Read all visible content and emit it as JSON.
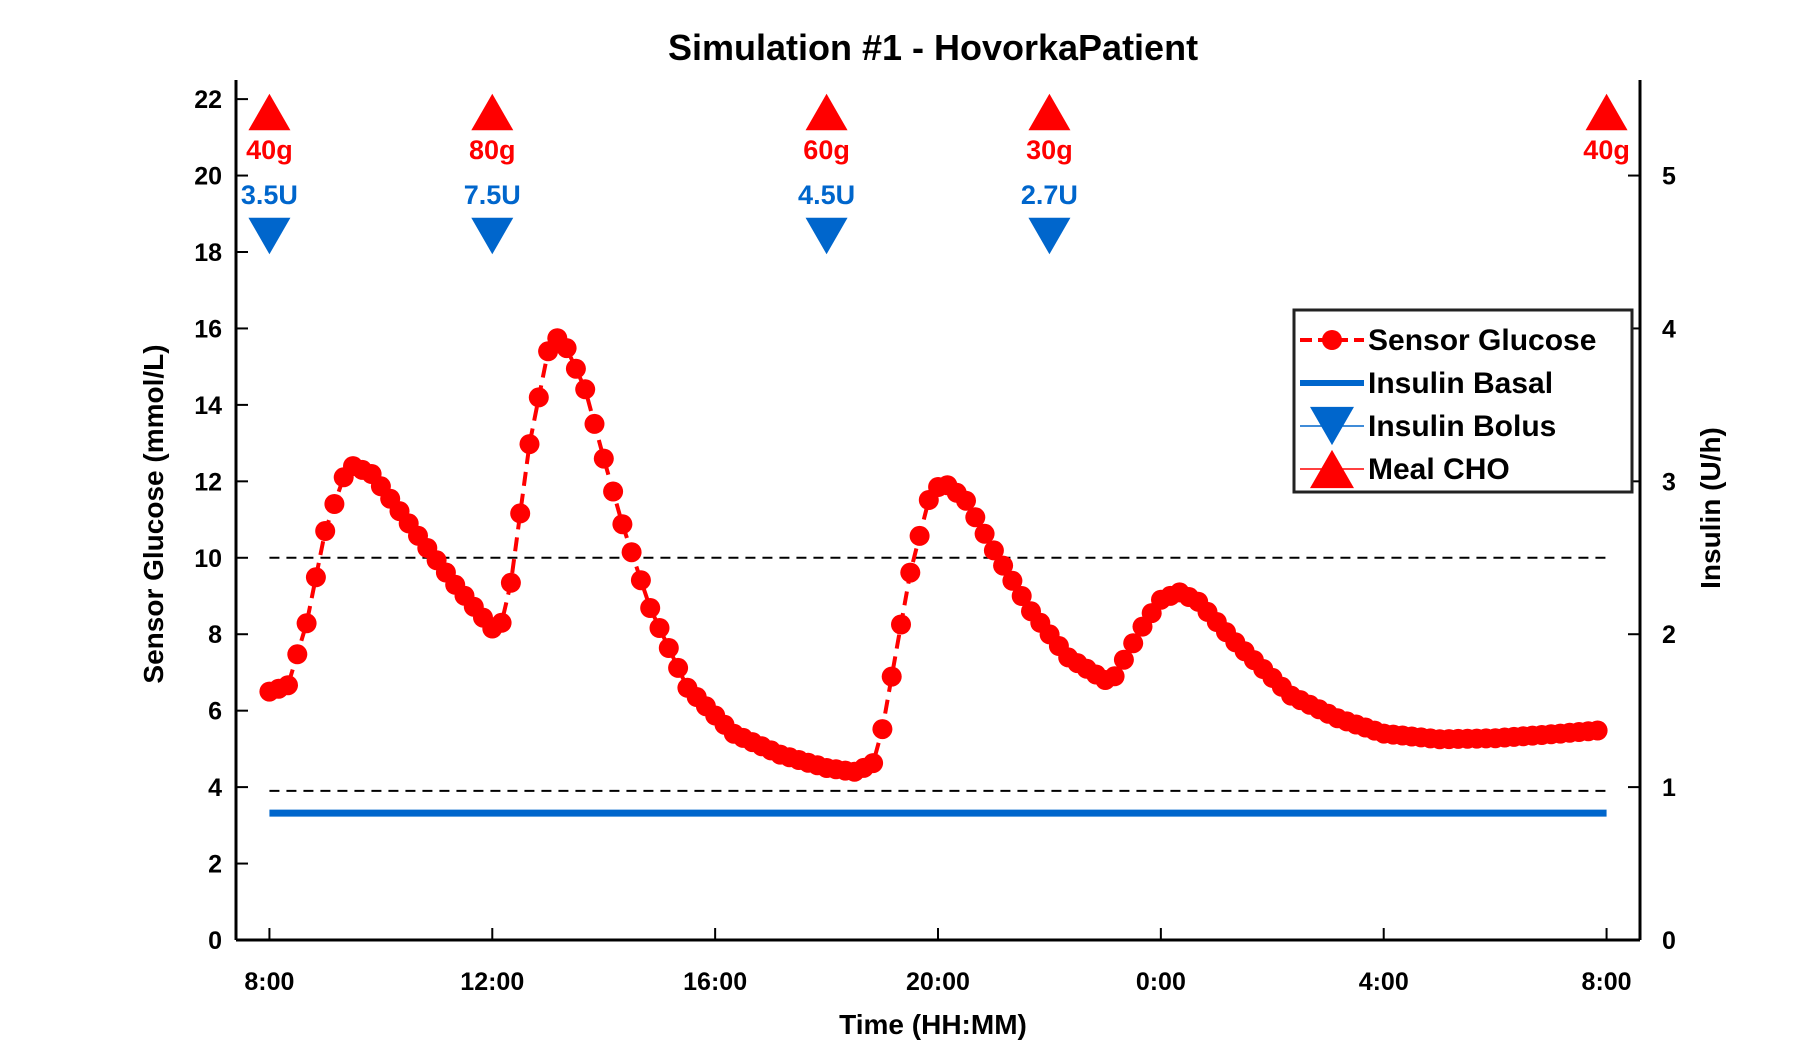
{
  "chart_data": {
    "type": "line",
    "title": "Simulation #1 - HovorkaPatient",
    "xlabel": "Time (HH:MM)",
    "ylabel": "Sensor Glucose (mmol/L)",
    "y2label": "Insulin (U/h)",
    "xlim": [
      -0.6,
      24.6
    ],
    "ylim": [
      0,
      22.5
    ],
    "y2lim": [
      0,
      5.625
    ],
    "x_ticks": [
      {
        "x": 0,
        "label": "8:00"
      },
      {
        "x": 4,
        "label": "12:00"
      },
      {
        "x": 8,
        "label": "16:00"
      },
      {
        "x": 12,
        "label": "20:00"
      },
      {
        "x": 16,
        "label": "0:00"
      },
      {
        "x": 20,
        "label": "4:00"
      },
      {
        "x": 24,
        "label": "8:00"
      }
    ],
    "y_ticks": [
      {
        "v": 0,
        "label": "0"
      },
      {
        "v": 2,
        "label": "2"
      },
      {
        "v": 4,
        "label": "4"
      },
      {
        "v": 6,
        "label": "6"
      },
      {
        "v": 8,
        "label": "8"
      },
      {
        "v": 10,
        "label": "10"
      },
      {
        "v": 12,
        "label": "12"
      },
      {
        "v": 14,
        "label": "14"
      },
      {
        "v": 16,
        "label": "16"
      },
      {
        "v": 18,
        "label": "18"
      },
      {
        "v": 20,
        "label": "20"
      },
      {
        "v": 22,
        "label": "22"
      }
    ],
    "y2_ticks": [
      {
        "v": 0,
        "label": "0"
      },
      {
        "v": 1,
        "label": "1"
      },
      {
        "v": 2,
        "label": "2"
      },
      {
        "v": 3,
        "label": "3"
      },
      {
        "v": 4,
        "label": "4"
      },
      {
        "v": 5,
        "label": "5"
      }
    ],
    "x_unit": "hours since 8:00",
    "glucose_keypoints": [
      [
        0,
        6.5
      ],
      [
        0.33,
        6.65
      ],
      [
        0.67,
        8.3
      ],
      [
        1.0,
        10.7
      ],
      [
        1.33,
        12.1
      ],
      [
        1.5,
        12.4
      ],
      [
        1.83,
        12.2
      ],
      [
        2.5,
        10.9
      ],
      [
        3.33,
        9.3
      ],
      [
        4.0,
        8.15
      ],
      [
        4.17,
        8.3
      ],
      [
        4.33,
        9.3
      ],
      [
        4.67,
        13.0
      ],
      [
        5.0,
        15.4
      ],
      [
        5.17,
        15.75
      ],
      [
        5.33,
        15.5
      ],
      [
        5.67,
        14.4
      ],
      [
        6.0,
        12.6
      ],
      [
        6.33,
        10.9
      ],
      [
        6.83,
        8.7
      ],
      [
        7.5,
        6.6
      ],
      [
        8.33,
        5.4
      ],
      [
        9.17,
        4.85
      ],
      [
        10.0,
        4.5
      ],
      [
        10.5,
        4.4
      ],
      [
        10.83,
        4.6
      ],
      [
        11.0,
        5.5
      ],
      [
        11.17,
        6.9
      ],
      [
        11.5,
        9.6
      ],
      [
        11.83,
        11.5
      ],
      [
        12.0,
        11.85
      ],
      [
        12.17,
        11.9
      ],
      [
        12.5,
        11.5
      ],
      [
        13.0,
        10.2
      ],
      [
        13.67,
        8.6
      ],
      [
        14.33,
        7.4
      ],
      [
        15.0,
        6.8
      ],
      [
        15.17,
        6.9
      ],
      [
        15.67,
        8.2
      ],
      [
        16.0,
        8.9
      ],
      [
        16.33,
        9.1
      ],
      [
        16.67,
        8.85
      ],
      [
        17.33,
        7.8
      ],
      [
        18.33,
        6.4
      ],
      [
        19.17,
        5.8
      ],
      [
        20.0,
        5.4
      ],
      [
        21.0,
        5.25
      ],
      [
        22.0,
        5.28
      ],
      [
        23.0,
        5.38
      ],
      [
        24.0,
        5.5
      ]
    ],
    "glucose_sample_step_hours": 0.1667,
    "thresholds": [
      10,
      3.9
    ],
    "insulin_basal": 0.83,
    "meals": [
      {
        "x": 0,
        "label": "40g"
      },
      {
        "x": 4,
        "label": "80g"
      },
      {
        "x": 10,
        "label": "60g"
      },
      {
        "x": 14,
        "label": "30g"
      },
      {
        "x": 24,
        "label": "40g"
      }
    ],
    "boluses": [
      {
        "x": 0,
        "label": "3.5U"
      },
      {
        "x": 4,
        "label": "7.5U"
      },
      {
        "x": 10,
        "label": "4.5U"
      },
      {
        "x": 14,
        "label": "2.7U"
      }
    ],
    "legend": {
      "placement": "top-right",
      "entries": [
        {
          "name": "Sensor Glucose",
          "kind": "glucose"
        },
        {
          "name": "Insulin Basal",
          "kind": "basal"
        },
        {
          "name": "Insulin Bolus",
          "kind": "bolus"
        },
        {
          "name": "Meal CHO",
          "kind": "meal"
        }
      ]
    },
    "colors": {
      "glucose": "#ff0000",
      "basal": "#0066cc",
      "bolus": "#0066cc",
      "meal": "#ff0000",
      "threshold": "#000000"
    }
  }
}
